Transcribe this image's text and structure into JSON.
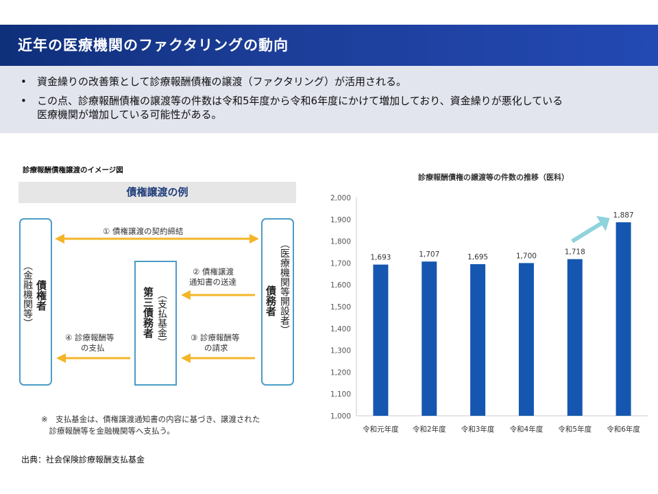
{
  "header": {
    "title": "近年の医療機関のファクタリングの動向"
  },
  "bullets": [
    "資金繰りの改善策として診療報酬債権の譲渡（ファクタリング）が活用される。",
    "この点、診療報酬債権の譲渡等の件数は令和5年度から令和6年度にかけて増加しており、資金繰りが悪化している",
    "医療機関が増加している可能性がある。"
  ],
  "bullet_marker": "•",
  "diagram": {
    "heading": "診療報酬債権譲渡のイメージ図",
    "example_title": "債権譲渡の例",
    "left_party": {
      "name": "債権者",
      "sub": "（金融機関等）"
    },
    "right_party": {
      "name": "債務者",
      "sub": "（医療機関等開設者）"
    },
    "center_party": {
      "name": "第三債務者",
      "sub": "（支払基金）"
    },
    "arrow1": "① 債権譲渡の契約締結",
    "arrow2_line1": "② 債権譲渡",
    "arrow2_line2": "通知書の送達",
    "arrow3_line1": "③ 診療報酬等",
    "arrow3_line2": "の請求",
    "arrow4_line1": "④ 診療報酬等",
    "arrow4_line2": "の支払",
    "note_line1": "※　支払基金は、債権譲渡通知書の内容に基づき、譲渡された",
    "note_line2": "　診療報酬等を金融機関等へ支払う。",
    "arrow_color": "#f5b528",
    "box_color": "#4a9cc6"
  },
  "source": "出典：社会保険診療報酬支払基金",
  "chart_data": {
    "type": "bar",
    "title": "診療報酬債権の譲渡等の件数の推移（医科）",
    "categories": [
      "令和元年度",
      "令和2年度",
      "令和3年度",
      "令和4年度",
      "令和5年度",
      "令和6年度"
    ],
    "values": [
      1693,
      1707,
      1695,
      1700,
      1718,
      1887
    ],
    "value_labels": [
      "1,693",
      "1,707",
      "1,695",
      "1,700",
      "1,718",
      "1,887"
    ],
    "yticks": [
      "1,000",
      "1,100",
      "1,200",
      "1,300",
      "1,400",
      "1,500",
      "1,600",
      "1,700",
      "1,800",
      "1,900",
      "2,000"
    ],
    "ylim": [
      1000,
      2000
    ],
    "xlabel": "",
    "ylabel": "",
    "bar_color": "#1557b0",
    "trend_arrow_color": "#8fd3dc",
    "grid": false
  }
}
